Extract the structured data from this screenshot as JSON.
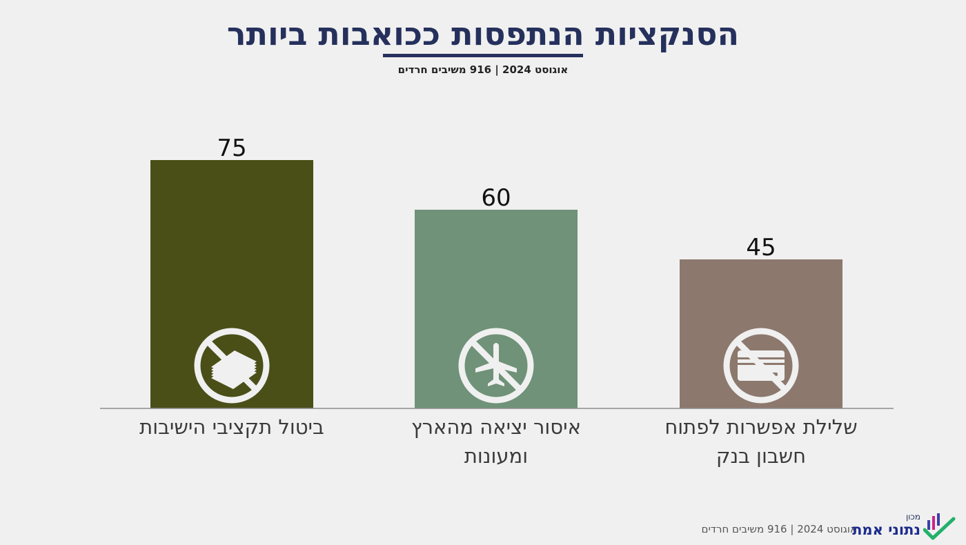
{
  "header": {
    "title": "הסנקציות הנתפסות ככואבות ביותר",
    "subtitle": "אוגוסט 2024 | 916 משיבים חרדים"
  },
  "chart_data": {
    "type": "bar",
    "title": "הסנקציות הנתפסות ככואבות ביותר",
    "subtitle": "אוגוסט 2024 | 916 משיבים חרדים",
    "categories": [
      "ביטול תקציבי הישיבות",
      "איסור יציאה מהארץ ומעונות",
      "שלילת אפשרות לפתוח חשבון בנק"
    ],
    "category_lines": [
      [
        "ביטול תקציבי הישיבות"
      ],
      [
        "איסור יציאה מהארץ",
        "ומעונות"
      ],
      [
        "שלילת אפשרות לפתוח",
        "חשבון בנק"
      ]
    ],
    "values": [
      75,
      60,
      45
    ],
    "value_labels": [
      "75",
      "60",
      "45"
    ],
    "colors": [
      "#4a4f18",
      "#6f9278",
      "#8c786d"
    ],
    "icons": [
      "no-money-icon",
      "no-flight-icon",
      "no-credit-card-icon"
    ],
    "ylim": [
      0,
      75
    ],
    "xlabel": "",
    "ylabel": "",
    "grid": false,
    "legend": "none"
  },
  "footer": {
    "text": "אוגוסט 2024 | 916 משיבים חרדים",
    "logo_small": "מכון",
    "logo_main": "נתוני אמת"
  }
}
